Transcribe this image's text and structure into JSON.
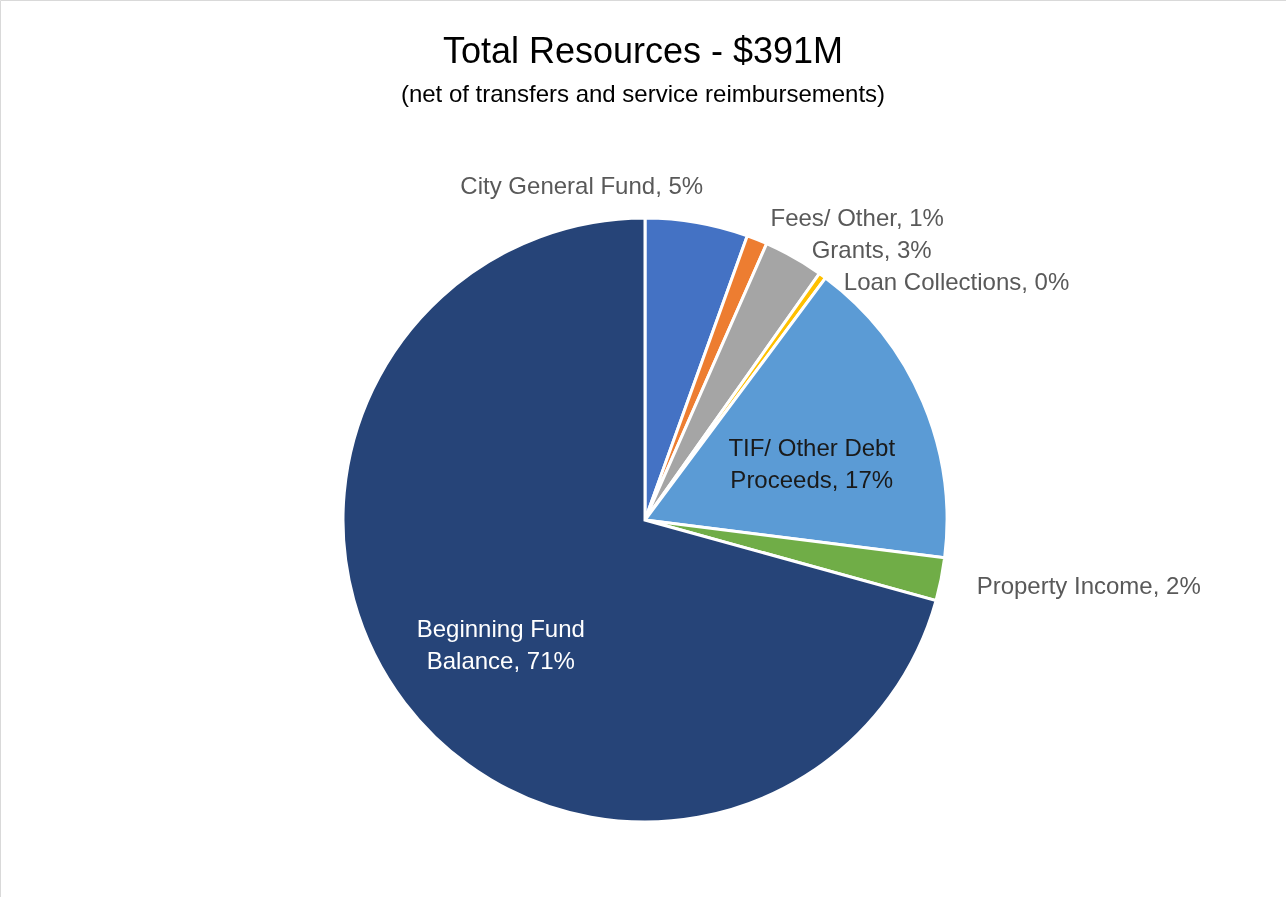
{
  "chart_data": {
    "type": "pie",
    "title": "Total Resources - $391M",
    "subtitle": "(net of transfers and service reimbursements)",
    "categories": [
      "City General Fund",
      "Fees/ Other",
      "Grants",
      "Loan Collections",
      "TIF/ Other Debt Proceeds",
      "Property Income",
      "Beginning Fund Balance"
    ],
    "values": [
      5.5,
      1.1,
      3.2,
      0.4,
      16.8,
      2.3,
      70.7
    ],
    "value_labels": [
      "5%",
      "1%",
      "3%",
      "0%",
      "17%",
      "2%",
      "71%"
    ],
    "colors": [
      "#4472c4",
      "#ed7d31",
      "#a5a5a5",
      "#ffc000",
      "#5b9bd5",
      "#70ad47",
      "#264478"
    ]
  }
}
